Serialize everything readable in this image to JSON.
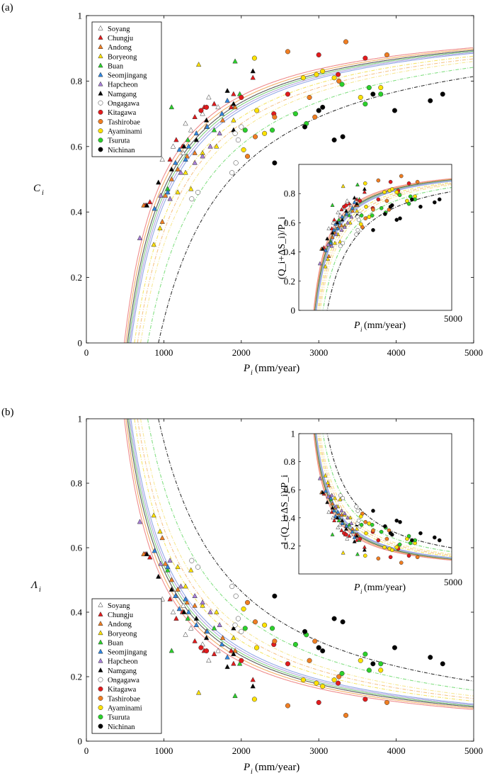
{
  "panel_tags": [
    "(a)",
    "(b)"
  ],
  "stations": [
    {
      "name": "Soyang",
      "marker": "triangle",
      "color": "#ffffff"
    },
    {
      "name": "Chungju",
      "marker": "triangle",
      "color": "#e31a1c"
    },
    {
      "name": "Andong",
      "marker": "triangle",
      "color": "#f07e22"
    },
    {
      "name": "Boryeong",
      "marker": "triangle",
      "color": "#ffe200"
    },
    {
      "name": "Buan",
      "marker": "triangle",
      "color": "#2bd12b"
    },
    {
      "name": "Seomjingang",
      "marker": "triangle",
      "color": "#2f86e0"
    },
    {
      "name": "Hapcheon",
      "marker": "triangle",
      "color": "#a77fd6"
    },
    {
      "name": "Namgang",
      "marker": "triangle",
      "color": "#000000"
    },
    {
      "name": "Ongagawa",
      "marker": "circle",
      "color": "#ffffff"
    },
    {
      "name": "Kitagawa",
      "marker": "circle",
      "color": "#e31a1c"
    },
    {
      "name": "Tashirobae",
      "marker": "circle",
      "color": "#f07e22"
    },
    {
      "name": "Ayaminami",
      "marker": "circle",
      "color": "#ffe200"
    },
    {
      "name": "Tsuruta",
      "marker": "circle",
      "color": "#2bd12b"
    },
    {
      "name": "Nichinan",
      "marker": "circle",
      "color": "#000000"
    }
  ],
  "chart_data": [
    {
      "id": "a-main",
      "type": "scatter",
      "title": "",
      "xlabel": "P",
      "xlabel_sub": "i",
      "xlabel_unit": " (mm/year)",
      "ylabel": "C",
      "ylabel_sub": "i",
      "xlim": [
        0,
        5000
      ],
      "ylim": [
        0,
        1
      ],
      "xticks": [
        0,
        1000,
        2000,
        3000,
        4000,
        5000
      ],
      "yticks": [
        0,
        0.2,
        0.4,
        0.6,
        0.8,
        1
      ],
      "ytick_labels": [
        "0",
        "0.2",
        "0.4",
        "0.6",
        "0.8",
        "1"
      ],
      "legend_position": "top-left",
      "curve_form": "1 - a/P (solid: Korean basins; dash-dot: Japanese basins)"
    },
    {
      "id": "a-inset",
      "type": "scatter",
      "xlabel": "P",
      "xlabel_sub": "i",
      "xlabel_unit": " (mm/year)",
      "ylabel": "(Q_i+ΔS_i)/P_i",
      "xlim": [
        0,
        5000
      ],
      "ylim": [
        0,
        1
      ],
      "xtick_labels": [
        "5000"
      ],
      "yticks": [
        0,
        0.2,
        0.4,
        0.6,
        0.8
      ],
      "ytick_labels": [
        "0",
        "0.2",
        "0.4",
        "0.6",
        "0.8"
      ]
    },
    {
      "id": "b-main",
      "type": "scatter",
      "xlabel": "P",
      "xlabel_sub": "i",
      "xlabel_unit": " (mm/year)",
      "ylabel": "Λ",
      "ylabel_sub": "i",
      "xlim": [
        0,
        5000
      ],
      "ylim": [
        0,
        1
      ],
      "xticks": [
        0,
        1000,
        2000,
        3000,
        4000,
        5000
      ],
      "yticks": [
        0,
        0.2,
        0.4,
        0.6,
        0.8,
        1
      ],
      "ytick_labels": [
        "0",
        "0.2",
        "0.4",
        "0.6",
        "0.8",
        "1"
      ],
      "legend_position": "bottom-left",
      "curve_form": "a/P"
    },
    {
      "id": "b-inset",
      "type": "scatter",
      "xlabel": "P",
      "xlabel_sub": "i",
      "xlabel_unit": " (mm/year)",
      "ylabel": "1-(Q_i+ΔS_i)/P_i",
      "xlim": [
        0,
        5000
      ],
      "ylim": [
        0,
        1
      ],
      "xtick_labels": [
        "5000"
      ],
      "yticks": [
        0.2,
        0.4,
        0.6,
        0.8,
        1
      ],
      "ytick_labels": [
        "0.2",
        "0.4",
        "0.6",
        "0.8",
        "1"
      ]
    }
  ],
  "curves": [
    {
      "a": 490,
      "color": "#ef8c8c",
      "style": "solid"
    },
    {
      "a": 510,
      "color": "#f0b06a",
      "style": "solid"
    },
    {
      "a": 530,
      "color": "#5a5a5a",
      "style": "solid"
    },
    {
      "a": 545,
      "color": "#7fce7f",
      "style": "solid"
    },
    {
      "a": 560,
      "color": "#b3a6e0",
      "style": "solid"
    },
    {
      "a": 575,
      "color": "#93a8e6",
      "style": "solid"
    },
    {
      "a": 620,
      "color": "#f5e56a",
      "style": "dash-dot"
    },
    {
      "a": 660,
      "color": "#f5c48a",
      "style": "dash-dot"
    },
    {
      "a": 700,
      "color": "#f7e896",
      "style": "dash-dot"
    },
    {
      "a": 790,
      "color": "#85e085",
      "style": "dash-dot"
    },
    {
      "a": 930,
      "color": "#333333",
      "style": "dash-dot"
    }
  ],
  "points": [
    {
      "s": 0,
      "P": 980,
      "C": 0.56
    },
    {
      "s": 0,
      "P": 1120,
      "C": 0.6
    },
    {
      "s": 0,
      "P": 1280,
      "C": 0.67
    },
    {
      "s": 0,
      "P": 1350,
      "C": 0.65
    },
    {
      "s": 0,
      "P": 1500,
      "C": 0.7
    },
    {
      "s": 0,
      "P": 1580,
      "C": 0.75
    },
    {
      "s": 0,
      "P": 1700,
      "C": 0.72
    },
    {
      "s": 0,
      "P": 1250,
      "C": 0.58
    },
    {
      "s": 1,
      "P": 760,
      "C": 0.42
    },
    {
      "s": 1,
      "P": 820,
      "C": 0.43
    },
    {
      "s": 1,
      "P": 1080,
      "C": 0.56
    },
    {
      "s": 1,
      "P": 1160,
      "C": 0.62
    },
    {
      "s": 1,
      "P": 1400,
      "C": 0.69
    },
    {
      "s": 1,
      "P": 1520,
      "C": 0.72
    },
    {
      "s": 1,
      "P": 1650,
      "C": 0.73
    },
    {
      "s": 1,
      "P": 1900,
      "C": 0.76
    },
    {
      "s": 1,
      "P": 1870,
      "C": 0.72
    },
    {
      "s": 1,
      "P": 2150,
      "C": 0.81
    },
    {
      "s": 1,
      "P": 1240,
      "C": 0.6
    },
    {
      "s": 2,
      "P": 740,
      "C": 0.42
    },
    {
      "s": 2,
      "P": 980,
      "C": 0.37
    },
    {
      "s": 2,
      "P": 1020,
      "C": 0.45
    },
    {
      "s": 2,
      "P": 1180,
      "C": 0.53
    },
    {
      "s": 2,
      "P": 1300,
      "C": 0.57
    },
    {
      "s": 2,
      "P": 1400,
      "C": 0.58
    },
    {
      "s": 2,
      "P": 1550,
      "C": 0.66
    },
    {
      "s": 2,
      "P": 1760,
      "C": 0.68
    },
    {
      "s": 2,
      "P": 1920,
      "C": 0.72
    },
    {
      "s": 2,
      "P": 1100,
      "C": 0.5
    },
    {
      "s": 3,
      "P": 870,
      "C": 0.3
    },
    {
      "s": 3,
      "P": 950,
      "C": 0.35
    },
    {
      "s": 3,
      "P": 1180,
      "C": 0.46
    },
    {
      "s": 3,
      "P": 1280,
      "C": 0.52
    },
    {
      "s": 3,
      "P": 1350,
      "C": 0.47
    },
    {
      "s": 3,
      "P": 1450,
      "C": 0.85
    },
    {
      "s": 3,
      "P": 1500,
      "C": 0.58
    },
    {
      "s": 3,
      "P": 1680,
      "C": 0.6
    },
    {
      "s": 3,
      "P": 1900,
      "C": 0.68
    },
    {
      "s": 4,
      "P": 1100,
      "C": 0.72
    },
    {
      "s": 4,
      "P": 1310,
      "C": 0.62
    },
    {
      "s": 4,
      "P": 1650,
      "C": 0.65
    },
    {
      "s": 4,
      "P": 1920,
      "C": 0.86
    },
    {
      "s": 4,
      "P": 1980,
      "C": 0.76
    },
    {
      "s": 4,
      "P": 1050,
      "C": 0.47
    },
    {
      "s": 5,
      "P": 880,
      "C": 0.41
    },
    {
      "s": 5,
      "P": 1050,
      "C": 0.46
    },
    {
      "s": 5,
      "P": 1150,
      "C": 0.55
    },
    {
      "s": 5,
      "P": 1200,
      "C": 0.59
    },
    {
      "s": 5,
      "P": 1320,
      "C": 0.6
    },
    {
      "s": 5,
      "P": 1420,
      "C": 0.64
    },
    {
      "s": 5,
      "P": 1560,
      "C": 0.66
    },
    {
      "s": 5,
      "P": 1750,
      "C": 0.7
    },
    {
      "s": 5,
      "P": 1820,
      "C": 0.74
    },
    {
      "s": 5,
      "P": 1280,
      "C": 0.56
    },
    {
      "s": 6,
      "P": 690,
      "C": 0.32
    },
    {
      "s": 6,
      "P": 780,
      "C": 0.42
    },
    {
      "s": 6,
      "P": 960,
      "C": 0.45
    },
    {
      "s": 6,
      "P": 1080,
      "C": 0.44
    },
    {
      "s": 6,
      "P": 1220,
      "C": 0.52
    },
    {
      "s": 6,
      "P": 1400,
      "C": 0.55
    },
    {
      "s": 6,
      "P": 1600,
      "C": 0.6
    },
    {
      "s": 6,
      "P": 1720,
      "C": 0.64
    },
    {
      "s": 6,
      "P": 1500,
      "C": 0.57
    },
    {
      "s": 7,
      "P": 780,
      "C": 0.42
    },
    {
      "s": 7,
      "P": 930,
      "C": 0.49
    },
    {
      "s": 7,
      "P": 1100,
      "C": 0.53
    },
    {
      "s": 7,
      "P": 1260,
      "C": 0.6
    },
    {
      "s": 7,
      "P": 1420,
      "C": 0.62
    },
    {
      "s": 7,
      "P": 1550,
      "C": 0.68
    },
    {
      "s": 7,
      "P": 1820,
      "C": 0.77
    },
    {
      "s": 7,
      "P": 1900,
      "C": 0.65
    },
    {
      "s": 7,
      "P": 2150,
      "C": 0.83
    },
    {
      "s": 7,
      "P": 1900,
      "C": 0.73
    },
    {
      "s": 8,
      "P": 1360,
      "C": 0.44
    },
    {
      "s": 8,
      "P": 1440,
      "C": 0.46
    },
    {
      "s": 8,
      "P": 1880,
      "C": 0.52
    },
    {
      "s": 8,
      "P": 1920,
      "C": 0.64
    },
    {
      "s": 8,
      "P": 1960,
      "C": 0.62
    },
    {
      "s": 8,
      "P": 2000,
      "C": 0.66
    },
    {
      "s": 8,
      "P": 1930,
      "C": 0.55
    },
    {
      "s": 9,
      "P": 1480,
      "C": 0.71
    },
    {
      "s": 9,
      "P": 2000,
      "C": 0.75
    },
    {
      "s": 9,
      "P": 2420,
      "C": 0.7
    },
    {
      "s": 9,
      "P": 2600,
      "C": 0.76
    },
    {
      "s": 9,
      "P": 3000,
      "C": 0.88
    },
    {
      "s": 9,
      "P": 3250,
      "C": 0.82
    },
    {
      "s": 9,
      "P": 3600,
      "C": 0.87
    },
    {
      "s": 9,
      "P": 1550,
      "C": 0.72
    },
    {
      "s": 10,
      "P": 2080,
      "C": 0.57
    },
    {
      "s": 10,
      "P": 2180,
      "C": 0.63
    },
    {
      "s": 10,
      "P": 2430,
      "C": 0.69
    },
    {
      "s": 10,
      "P": 2600,
      "C": 0.89
    },
    {
      "s": 10,
      "P": 2880,
      "C": 0.75
    },
    {
      "s": 10,
      "P": 2950,
      "C": 0.69
    },
    {
      "s": 10,
      "P": 3350,
      "C": 0.92
    },
    {
      "s": 10,
      "P": 3880,
      "C": 0.88
    },
    {
      "s": 10,
      "P": 3260,
      "C": 0.8
    },
    {
      "s": 11,
      "P": 2030,
      "C": 0.59
    },
    {
      "s": 11,
      "P": 2200,
      "C": 0.71
    },
    {
      "s": 11,
      "P": 2300,
      "C": 0.64
    },
    {
      "s": 11,
      "P": 2800,
      "C": 0.81
    },
    {
      "s": 11,
      "P": 2970,
      "C": 0.82
    },
    {
      "s": 11,
      "P": 3050,
      "C": 0.83
    },
    {
      "s": 11,
      "P": 3200,
      "C": 0.81
    },
    {
      "s": 11,
      "P": 3540,
      "C": 0.75
    },
    {
      "s": 11,
      "P": 3800,
      "C": 0.78
    },
    {
      "s": 11,
      "P": 2170,
      "C": 0.87
    },
    {
      "s": 12,
      "P": 2050,
      "C": 0.65
    },
    {
      "s": 12,
      "P": 2400,
      "C": 0.65
    },
    {
      "s": 12,
      "P": 2700,
      "C": 0.7
    },
    {
      "s": 12,
      "P": 2840,
      "C": 0.67
    },
    {
      "s": 12,
      "P": 3000,
      "C": 0.71
    },
    {
      "s": 12,
      "P": 3300,
      "C": 0.79
    },
    {
      "s": 12,
      "P": 3600,
      "C": 0.73
    },
    {
      "s": 12,
      "P": 3800,
      "C": 0.76
    },
    {
      "s": 12,
      "P": 3650,
      "C": 0.78
    },
    {
      "s": 13,
      "P": 2430,
      "C": 0.55
    },
    {
      "s": 13,
      "P": 2820,
      "C": 0.66
    },
    {
      "s": 13,
      "P": 3000,
      "C": 0.71
    },
    {
      "s": 13,
      "P": 3200,
      "C": 0.62
    },
    {
      "s": 13,
      "P": 3310,
      "C": 0.63
    },
    {
      "s": 13,
      "P": 3700,
      "C": 0.76
    },
    {
      "s": 13,
      "P": 3980,
      "C": 0.71
    },
    {
      "s": 13,
      "P": 4440,
      "C": 0.74
    },
    {
      "s": 13,
      "P": 4600,
      "C": 0.76
    },
    {
      "s": 13,
      "P": 3050,
      "C": 0.72
    }
  ]
}
